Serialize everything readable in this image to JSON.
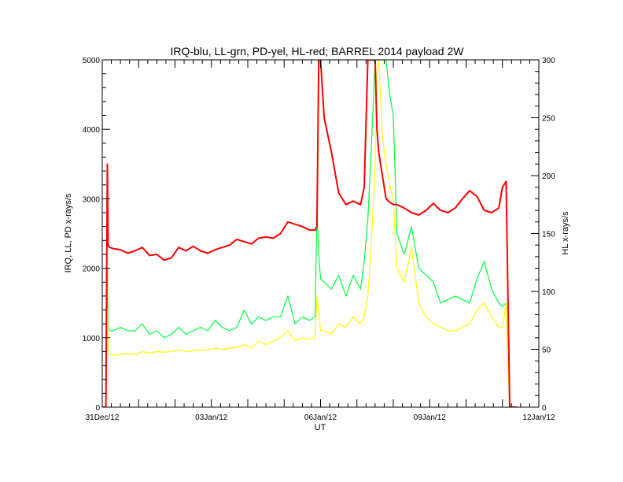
{
  "chart_data": {
    "type": "line",
    "title": "IRQ-blu, LL-grn, PD-yel, HL-red; BARREL 2014 payload 2W",
    "xlabel": "UT",
    "ylabel": "IRQ, LL, PD x-rays/s",
    "y2label": "HL x-rays/s",
    "xlim": [
      0,
      12
    ],
    "ylim": [
      0,
      5000
    ],
    "y2lim": [
      0,
      300
    ],
    "grid": false,
    "x_tick_labels": [
      {
        "x": 0,
        "label": "31Dec/12"
      },
      {
        "x": 3,
        "label": "03Jan/12"
      },
      {
        "x": 6,
        "label": "06Jan/12"
      },
      {
        "x": 9,
        "label": "09Jan/12"
      },
      {
        "x": 12,
        "label": "12Jan/12"
      }
    ],
    "y_tick_labels": [
      "0",
      "1000",
      "2000",
      "3000",
      "4000",
      "5000"
    ],
    "y2_tick_labels": [
      "0",
      "50",
      "100",
      "150",
      "200",
      "250",
      "300"
    ],
    "colors": {
      "LL": "#00ff40",
      "PD": "#ffff00",
      "HL": "#ff0000",
      "axes": "#000000"
    },
    "series": [
      {
        "key": "LL",
        "axis": "left",
        "color": "#00ff40",
        "x": [
          0.0,
          0.1,
          0.14,
          0.16,
          0.2,
          0.3,
          0.5,
          0.7,
          0.9,
          1.1,
          1.3,
          1.5,
          1.7,
          1.9,
          2.1,
          2.3,
          2.5,
          2.7,
          2.9,
          3.1,
          3.3,
          3.5,
          3.7,
          3.9,
          4.1,
          4.3,
          4.5,
          4.7,
          4.9,
          5.1,
          5.3,
          5.5,
          5.7,
          5.85,
          5.9,
          5.95,
          6.0,
          6.1,
          6.3,
          6.5,
          6.7,
          6.9,
          7.1,
          7.2,
          7.3,
          7.4,
          7.5,
          7.55,
          7.6,
          7.7,
          7.8,
          7.9,
          8.0,
          8.1,
          8.3,
          8.5,
          8.7,
          8.9,
          9.1,
          9.3,
          9.5,
          9.7,
          9.9,
          10.1,
          10.3,
          10.5,
          10.7,
          10.9,
          11.0,
          11.1,
          11.2,
          11.4
        ],
        "y": [
          0,
          0,
          2000,
          1150,
          1100,
          1100,
          1150,
          1100,
          1100,
          1200,
          1050,
          1100,
          1000,
          1050,
          1150,
          1050,
          1100,
          1150,
          1100,
          1250,
          1150,
          1100,
          1150,
          1400,
          1200,
          1300,
          1250,
          1300,
          1300,
          1600,
          1200,
          1300,
          1250,
          1300,
          2800,
          2200,
          1850,
          1800,
          1700,
          1900,
          1600,
          1900,
          1700,
          2100,
          2700,
          3800,
          5000,
          5000,
          5000,
          5000,
          5000,
          4500,
          4200,
          2500,
          2200,
          2600,
          2000,
          1900,
          1800,
          1500,
          1550,
          1600,
          1550,
          1500,
          1850,
          2100,
          1700,
          1500,
          1450,
          1500,
          0,
          0
        ]
      },
      {
        "key": "PD",
        "axis": "left",
        "color": "#ffff00",
        "x": [
          0.0,
          0.1,
          0.14,
          0.16,
          0.2,
          0.3,
          0.5,
          0.7,
          0.9,
          1.1,
          1.3,
          1.5,
          1.7,
          1.9,
          2.1,
          2.3,
          2.5,
          2.7,
          2.9,
          3.1,
          3.3,
          3.5,
          3.7,
          3.9,
          4.1,
          4.3,
          4.5,
          4.7,
          4.9,
          5.1,
          5.3,
          5.5,
          5.7,
          5.85,
          5.9,
          5.95,
          6.0,
          6.1,
          6.3,
          6.5,
          6.7,
          6.9,
          7.1,
          7.2,
          7.3,
          7.4,
          7.5,
          7.55,
          7.6,
          7.7,
          7.8,
          7.9,
          8.0,
          8.1,
          8.3,
          8.5,
          8.7,
          8.9,
          9.1,
          9.3,
          9.5,
          9.7,
          9.9,
          10.1,
          10.3,
          10.5,
          10.7,
          10.9,
          11.0,
          11.1,
          11.2,
          11.4
        ],
        "y": [
          0,
          0,
          1400,
          780,
          760,
          750,
          760,
          770,
          760,
          800,
          780,
          800,
          790,
          800,
          820,
          800,
          810,
          830,
          820,
          850,
          830,
          850,
          860,
          900,
          850,
          950,
          900,
          950,
          1000,
          1100,
          950,
          1000,
          980,
          1000,
          1600,
          1400,
          1100,
          1100,
          1050,
          1200,
          1150,
          1300,
          1200,
          1300,
          1600,
          2400,
          3500,
          4800,
          5000,
          3900,
          3500,
          3200,
          3000,
          2000,
          1800,
          2300,
          1500,
          1300,
          1200,
          1150,
          1100,
          1100,
          1150,
          1200,
          1400,
          1500,
          1300,
          1150,
          1150,
          1500,
          0,
          0
        ]
      },
      {
        "key": "HL",
        "axis": "right",
        "color": "#ff0000",
        "x": [
          0.0,
          0.1,
          0.14,
          0.16,
          0.2,
          0.3,
          0.5,
          0.7,
          0.9,
          1.1,
          1.3,
          1.5,
          1.7,
          1.9,
          2.1,
          2.3,
          2.5,
          2.7,
          2.9,
          3.1,
          3.3,
          3.5,
          3.7,
          3.9,
          4.1,
          4.3,
          4.5,
          4.7,
          4.9,
          5.1,
          5.3,
          5.5,
          5.7,
          5.85,
          5.9,
          5.95,
          6.0,
          6.1,
          6.3,
          6.5,
          6.7,
          6.9,
          7.1,
          7.2,
          7.3,
          7.4,
          7.5,
          7.55,
          7.6,
          7.7,
          7.8,
          7.9,
          8.0,
          8.1,
          8.3,
          8.5,
          8.7,
          8.9,
          9.1,
          9.3,
          9.5,
          9.7,
          9.9,
          10.1,
          10.3,
          10.5,
          10.7,
          10.9,
          11.0,
          11.1,
          11.2,
          11.4
        ],
        "y": [
          0,
          0,
          210,
          140,
          138,
          137,
          136,
          133,
          135,
          138,
          131,
          132,
          127,
          129,
          138,
          135,
          139,
          135,
          133,
          136,
          138,
          140,
          145,
          143,
          141,
          146,
          147,
          146,
          150,
          160,
          158,
          156,
          153,
          153,
          156,
          300,
          300,
          250,
          220,
          185,
          175,
          178,
          175,
          190,
          300,
          300,
          300,
          240,
          220,
          200,
          180,
          177,
          175,
          175,
          172,
          168,
          166,
          170,
          176,
          170,
          168,
          172,
          180,
          187,
          182,
          170,
          168,
          172,
          190,
          195,
          0,
          0
        ]
      }
    ]
  }
}
